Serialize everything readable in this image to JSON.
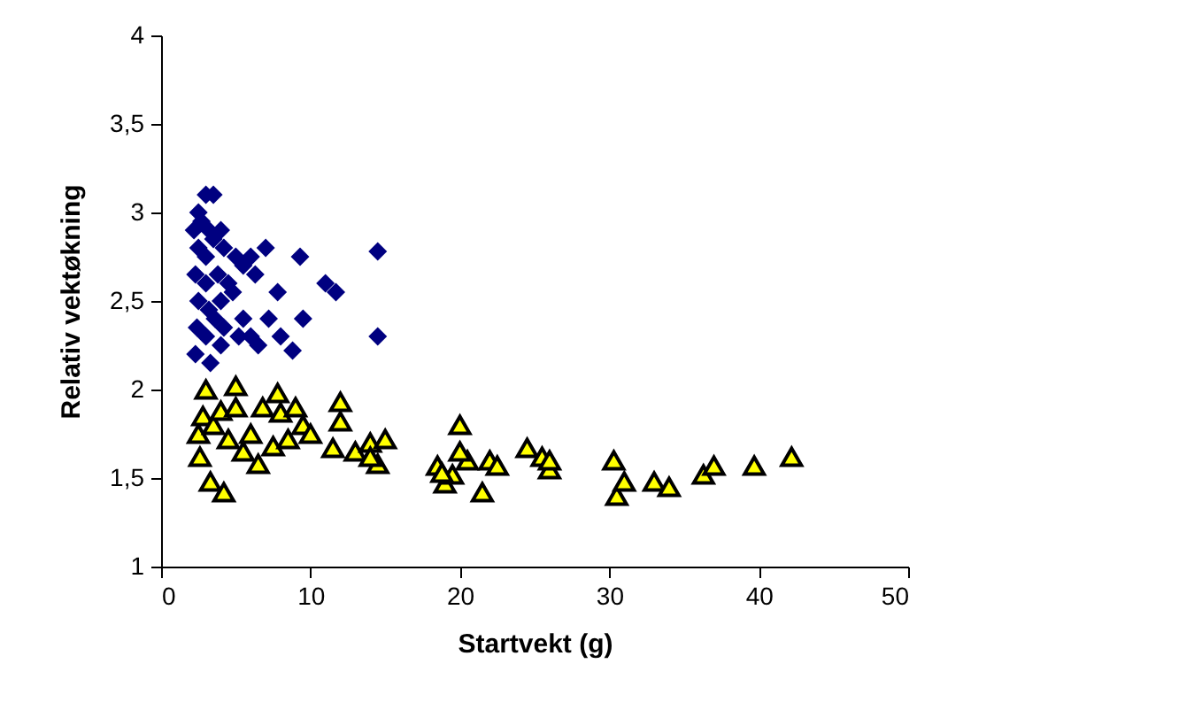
{
  "chart_data": {
    "type": "scatter",
    "xlabel": "Startvekt (g)",
    "ylabel": "Relativ vektøkning",
    "xlim": [
      0,
      50
    ],
    "xticks": [
      0,
      10,
      20,
      30,
      40,
      50
    ],
    "ylim": [
      1,
      4
    ],
    "yticks": [
      1,
      {
        "value": 1.5,
        "label": "1,5"
      },
      2,
      {
        "value": 2.5,
        "label": "2,5"
      },
      3,
      {
        "value": 3.5,
        "label": "3,5"
      },
      4
    ],
    "grid": false,
    "series": [
      {
        "color": "#000080",
        "marker": "diamond",
        "x": [
          2.5,
          3,
          3.5,
          2.2,
          2.7,
          3.2,
          4,
          2.5,
          3,
          3.5,
          4.2,
          5,
          2.3,
          3,
          3.8,
          4.5,
          5.5,
          6,
          7,
          6.3,
          2.5,
          3.2,
          4,
          4.8,
          2.4,
          3,
          3.6,
          4.2,
          2.3,
          3.3,
          4,
          5.5,
          6,
          6.5,
          7.2,
          7.8,
          8,
          8.8,
          9.5,
          9.3,
          11,
          11.7,
          14.5,
          14.5,
          5.2
        ],
        "values": [
          3,
          3.1,
          3.1,
          2.9,
          2.95,
          2.9,
          2.9,
          2.8,
          2.75,
          2.85,
          2.8,
          2.75,
          2.65,
          2.6,
          2.65,
          2.6,
          2.7,
          2.75,
          2.8,
          2.65,
          2.5,
          2.45,
          2.5,
          2.55,
          2.35,
          2.3,
          2.4,
          2.35,
          2.2,
          2.15,
          2.25,
          2.4,
          2.3,
          2.25,
          2.4,
          2.55,
          2.3,
          2.22,
          2.4,
          2.75,
          2.6,
          2.55,
          2.78,
          2.3,
          2.3
        ]
      },
      {
        "color": "#ffff00",
        "marker": "triangle",
        "x": [
          2.5,
          3,
          2.8,
          2.6,
          3.5,
          3.3,
          4,
          4.5,
          4.2,
          5,
          5,
          5.5,
          6,
          6.5,
          6.8,
          7.5,
          7.8,
          8,
          8.5,
          9,
          9.5,
          10,
          11.5,
          12,
          12,
          13,
          14,
          14.5,
          15,
          14,
          18.5,
          19,
          19.5,
          20,
          20.5,
          21.5,
          22,
          22.5,
          24.5,
          25.5,
          26,
          26,
          30.3,
          30.5,
          31,
          33,
          34,
          36.3,
          37,
          39.7,
          42.2,
          20,
          18.8
        ],
        "values": [
          1.75,
          2,
          1.85,
          1.62,
          1.8,
          1.48,
          1.88,
          1.72,
          1.42,
          2.02,
          1.9,
          1.65,
          1.75,
          1.58,
          1.9,
          1.68,
          1.98,
          1.87,
          1.72,
          1.9,
          1.8,
          1.75,
          1.67,
          1.93,
          1.82,
          1.65,
          1.7,
          1.58,
          1.72,
          1.62,
          1.57,
          1.47,
          1.52,
          1.8,
          1.6,
          1.42,
          1.6,
          1.57,
          1.67,
          1.62,
          1.55,
          1.6,
          1.6,
          1.4,
          1.48,
          1.48,
          1.45,
          1.52,
          1.57,
          1.57,
          1.62,
          1.65,
          1.53
        ]
      }
    ]
  }
}
